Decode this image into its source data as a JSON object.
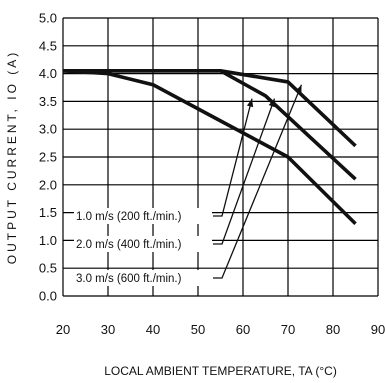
{
  "chart_data": {
    "type": "line",
    "xlabel": "LOCAL AMBIENT TEMPERATURE, TA (°C)",
    "ylabel": "OUTPUT CURRENT, IO (A)",
    "xlim": [
      20,
      90
    ],
    "ylim": [
      0,
      5
    ],
    "xticks": [
      "20",
      "30",
      "40",
      "50",
      "60",
      "70",
      "80",
      "90"
    ],
    "yticks": [
      "0.0",
      "0.5",
      "1.0",
      "1.5",
      "2.0",
      "2.5",
      "3.0",
      "3.5",
      "4.0",
      "4.5",
      "5.0"
    ],
    "grid": true,
    "series": [
      {
        "name": "1.0 m/s (200 ft./min.)",
        "x": [
          20,
          30,
          40,
          55,
          70,
          85
        ],
        "y": [
          4.05,
          4.0,
          3.8,
          3.15,
          2.5,
          1.3
        ]
      },
      {
        "name": "2.0 m/s (400 ft./min.)",
        "x": [
          20,
          30,
          55,
          65,
          75,
          85
        ],
        "y": [
          4.05,
          4.05,
          4.05,
          3.6,
          2.85,
          2.1
        ]
      },
      {
        "name": "3.0 m/s (600 ft./min.)",
        "x": [
          20,
          30,
          55,
          70,
          85
        ],
        "y": [
          4.05,
          4.05,
          4.05,
          3.85,
          2.7
        ]
      }
    ]
  }
}
